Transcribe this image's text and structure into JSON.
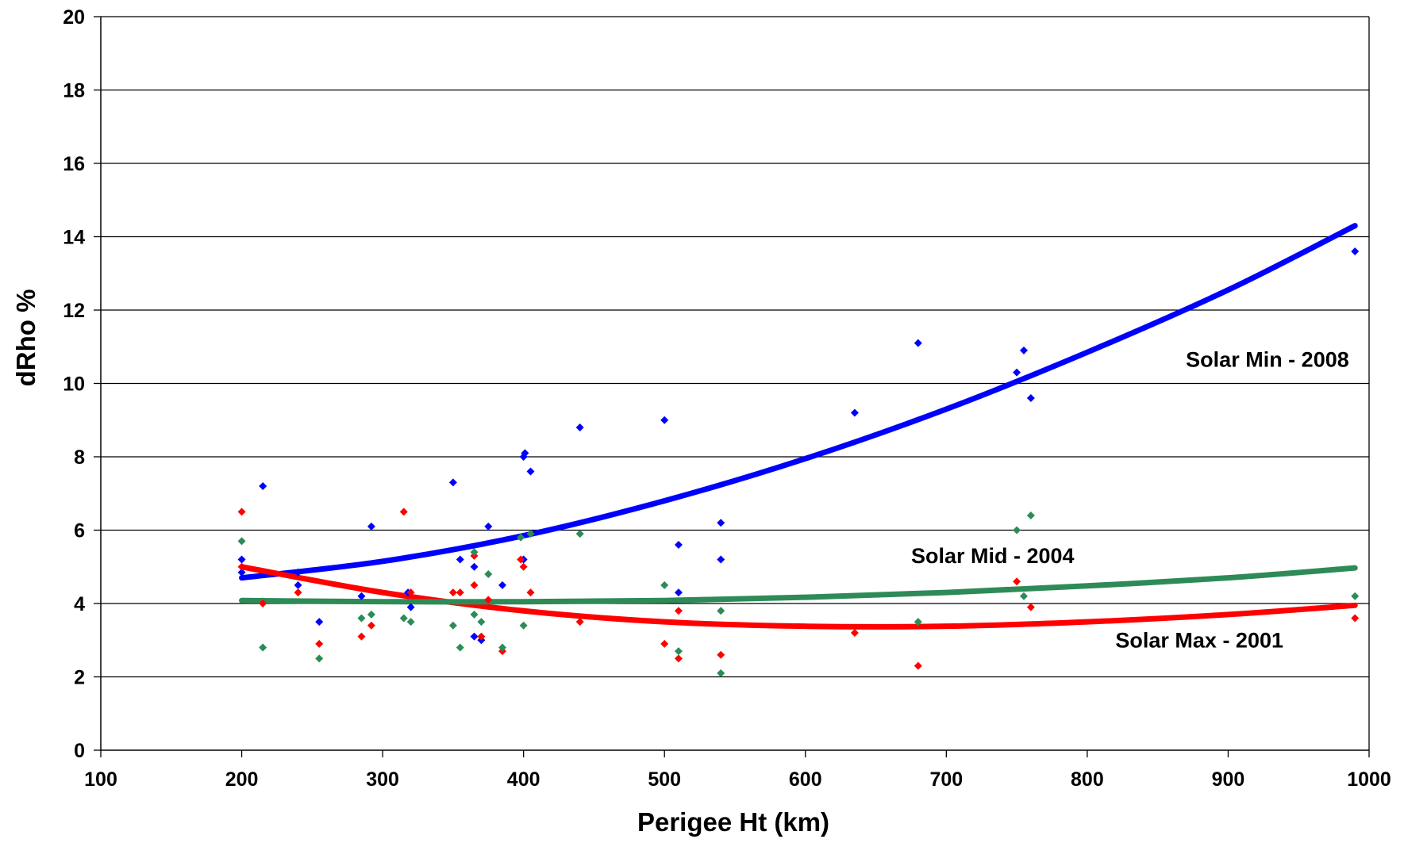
{
  "chart_data": {
    "type": "scatter",
    "xlabel": "Perigee Ht (km)",
    "ylabel": "dRho %",
    "xlim": [
      100,
      1000
    ],
    "ylim": [
      0,
      20
    ],
    "x_ticks": [
      "100",
      "200",
      "300",
      "400",
      "500",
      "600",
      "700",
      "800",
      "900",
      "1000"
    ],
    "y_ticks": [
      "0",
      "2",
      "4",
      "6",
      "8",
      "10",
      "12",
      "14",
      "16",
      "18",
      "20"
    ],
    "grid": "horizontal",
    "legend": "none",
    "series": [
      {
        "color": "#0000ff",
        "points": [
          [
            200,
            4.85
          ],
          [
            200,
            5.2
          ],
          [
            215,
            7.2
          ],
          [
            240,
            4.5
          ],
          [
            240,
            4.85
          ],
          [
            255,
            3.5
          ],
          [
            285,
            4.2
          ],
          [
            292,
            6.1
          ],
          [
            318,
            4.3
          ],
          [
            320,
            3.9
          ],
          [
            350,
            7.3
          ],
          [
            355,
            5.2
          ],
          [
            365,
            5.0
          ],
          [
            365,
            3.1
          ],
          [
            370,
            3.0
          ],
          [
            375,
            6.1
          ],
          [
            385,
            4.5
          ],
          [
            400,
            8.0
          ],
          [
            401,
            8.1
          ],
          [
            400,
            5.2
          ],
          [
            405,
            7.6
          ],
          [
            440,
            8.8
          ],
          [
            500,
            9.0
          ],
          [
            510,
            5.6
          ],
          [
            510,
            4.3
          ],
          [
            540,
            6.2
          ],
          [
            540,
            5.2
          ],
          [
            635,
            9.2
          ],
          [
            680,
            11.1
          ],
          [
            750,
            10.3
          ],
          [
            755,
            10.9
          ],
          [
            760,
            9.6
          ],
          [
            990,
            13.6
          ]
        ],
        "trend": [
          [
            200,
            4.7
          ],
          [
            300,
            5.15
          ],
          [
            400,
            5.85
          ],
          [
            500,
            6.8
          ],
          [
            600,
            7.95
          ],
          [
            700,
            9.3
          ],
          [
            800,
            10.85
          ],
          [
            900,
            12.55
          ],
          [
            990,
            14.3
          ]
        ]
      },
      {
        "color": "#ff0000",
        "points": [
          [
            200,
            6.5
          ],
          [
            200,
            5.0
          ],
          [
            215,
            4.0
          ],
          [
            240,
            4.3
          ],
          [
            255,
            2.9
          ],
          [
            285,
            3.1
          ],
          [
            292,
            3.4
          ],
          [
            315,
            6.5
          ],
          [
            320,
            4.3
          ],
          [
            350,
            4.3
          ],
          [
            355,
            4.3
          ],
          [
            365,
            5.3
          ],
          [
            365,
            4.5
          ],
          [
            370,
            3.1
          ],
          [
            375,
            4.1
          ],
          [
            385,
            2.7
          ],
          [
            398,
            5.2
          ],
          [
            400,
            5.0
          ],
          [
            405,
            4.3
          ],
          [
            440,
            3.5
          ],
          [
            500,
            2.9
          ],
          [
            510,
            3.8
          ],
          [
            510,
            2.5
          ],
          [
            540,
            2.6
          ],
          [
            635,
            3.2
          ],
          [
            680,
            2.3
          ],
          [
            750,
            4.6
          ],
          [
            760,
            3.9
          ],
          [
            990,
            3.6
          ]
        ],
        "trend": [
          [
            200,
            5.0
          ],
          [
            300,
            4.3
          ],
          [
            400,
            3.8
          ],
          [
            500,
            3.5
          ],
          [
            600,
            3.38
          ],
          [
            700,
            3.38
          ],
          [
            800,
            3.5
          ],
          [
            900,
            3.7
          ],
          [
            990,
            3.95
          ]
        ]
      },
      {
        "color": "#2e8b57",
        "points": [
          [
            200,
            5.7
          ],
          [
            215,
            2.8
          ],
          [
            255,
            2.5
          ],
          [
            285,
            3.6
          ],
          [
            292,
            3.7
          ],
          [
            315,
            3.6
          ],
          [
            320,
            3.5
          ],
          [
            350,
            3.4
          ],
          [
            355,
            2.8
          ],
          [
            365,
            5.4
          ],
          [
            365,
            3.7
          ],
          [
            370,
            3.5
          ],
          [
            375,
            4.8
          ],
          [
            385,
            2.8
          ],
          [
            398,
            5.8
          ],
          [
            400,
            3.4
          ],
          [
            405,
            5.9
          ],
          [
            440,
            5.9
          ],
          [
            500,
            4.5
          ],
          [
            510,
            2.7
          ],
          [
            540,
            3.8
          ],
          [
            540,
            2.1
          ],
          [
            680,
            3.5
          ],
          [
            750,
            6.0
          ],
          [
            755,
            4.2
          ],
          [
            760,
            6.4
          ],
          [
            990,
            4.2
          ]
        ],
        "trend": [
          [
            200,
            4.08
          ],
          [
            300,
            4.05
          ],
          [
            400,
            4.05
          ],
          [
            500,
            4.08
          ],
          [
            600,
            4.17
          ],
          [
            700,
            4.3
          ],
          [
            800,
            4.48
          ],
          [
            900,
            4.7
          ],
          [
            990,
            4.97
          ]
        ]
      }
    ],
    "annotations": [
      {
        "text": "Solar Min - 2008",
        "x": 870,
        "y": 10.45
      },
      {
        "text": "Solar Mid - 2004",
        "x": 675,
        "y": 5.1
      },
      {
        "text": "Solar Max - 2001",
        "x": 820,
        "y": 2.8
      }
    ]
  }
}
